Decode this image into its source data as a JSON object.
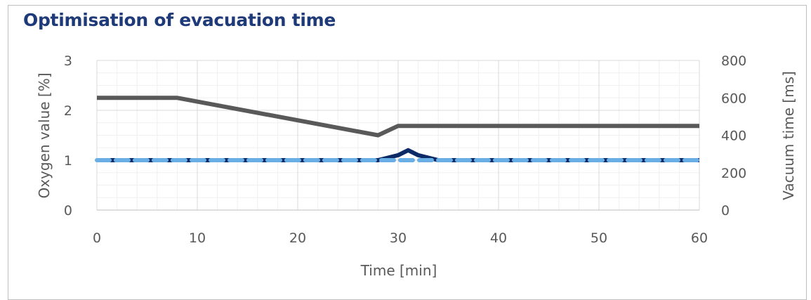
{
  "chart_data": {
    "type": "line",
    "title": "Optimisation of evacuation time",
    "xlabel": "Time [min]",
    "ylabel": "Oxygen value [%]",
    "y2label": "Vacuum time [ms]",
    "xlim": [
      0,
      60
    ],
    "ylim": [
      0,
      3
    ],
    "y2lim": [
      0,
      800
    ],
    "x_ticks": [
      "0",
      "10",
      "20",
      "30",
      "40",
      "50",
      "60"
    ],
    "y_ticks": [
      "0",
      "1",
      "2",
      "3"
    ],
    "y2_ticks": [
      "0",
      "200",
      "400",
      "600",
      "800"
    ],
    "grid": true,
    "series": [
      {
        "axis": "y2",
        "color": "#595959",
        "style": "solid",
        "points": [
          [
            0,
            600
          ],
          [
            8,
            600
          ],
          [
            28,
            400
          ],
          [
            30,
            450
          ],
          [
            60,
            450
          ]
        ]
      },
      {
        "axis": "y",
        "color": "#0b2a66",
        "style": "solid",
        "points": [
          [
            0,
            1.0
          ],
          [
            28,
            1.0
          ],
          [
            30,
            1.1
          ],
          [
            31,
            1.2
          ],
          [
            32,
            1.1
          ],
          [
            34,
            1.0
          ],
          [
            60,
            1.0
          ]
        ]
      },
      {
        "axis": "y",
        "color": "#6aaee6",
        "style": "dashed",
        "points": [
          [
            0,
            1.0
          ],
          [
            60,
            1.0
          ]
        ]
      }
    ]
  }
}
